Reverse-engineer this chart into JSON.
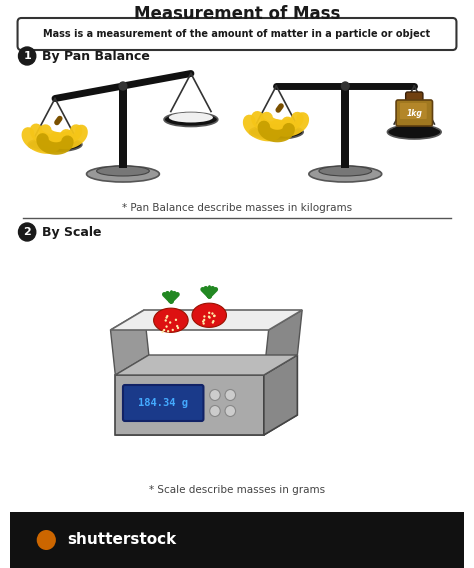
{
  "title": "Measurement of Mass",
  "subtitle": "Mass is a measurement of the amount of matter in a particle or object",
  "section1_label": "1",
  "section1_title": "By Pan Balance",
  "section1_note": "* Pan Balance describe masses in kilograms",
  "section2_label": "2",
  "section2_title": "By Scale",
  "section2_note": "* Scale describe masses in grams",
  "scale_display": "184.34 g",
  "weight_label": "1kg",
  "bg_color": "#ffffff",
  "title_color": "#1a1a1a",
  "subtitle_bg": "#ffffff",
  "subtitle_border": "#333333",
  "section_circle_color": "#1a1a1a",
  "section_text_color": "#1a1a1a",
  "note_color": "#444444",
  "balance_pole_color": "#111111",
  "balance_beam_color": "#111111",
  "balance_pan_color": "#111111",
  "balance_base_color": "#888888",
  "banana_color": "#f5c518",
  "banana_dark": "#c8a000",
  "banana_tip": "#7a5000",
  "strawberry_red": "#dd1111",
  "strawberry_dark": "#991100",
  "strawberry_light": "#ff3333",
  "scale_body_color": "#aaaaaa",
  "scale_side_color": "#888888",
  "scale_top_color": "#e8e8e8",
  "scale_display_bg": "#1a3a8a",
  "scale_display_text": "#44aaff",
  "scale_btn_color": "#cccccc",
  "weight_color": "#a07820",
  "weight_mid": "#c09030",
  "weight_dark": "#604010",
  "weight_knob": "#704010",
  "divider_color": "#555555",
  "shutterstock_bar": "#111111",
  "shutterstock_text": "#ffffff"
}
